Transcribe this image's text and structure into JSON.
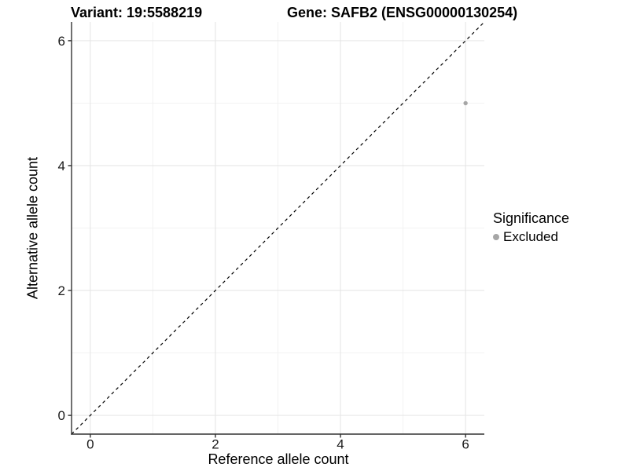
{
  "chart_data": {
    "type": "scatter",
    "title_left": "Variant: 19:5588219",
    "title_right": "Gene: SAFB2 (ENSG00000130254)",
    "xlabel": "Reference allele count",
    "ylabel": "Alternative allele count",
    "xlim": [
      -0.3,
      6.3
    ],
    "ylim": [
      -0.3,
      6.3
    ],
    "x_ticks": [
      0,
      2,
      4,
      6
    ],
    "y_ticks": [
      0,
      2,
      4,
      6
    ],
    "x_minor_ticks": [
      1,
      3,
      5
    ],
    "y_minor_ticks": [
      1,
      3,
      5
    ],
    "grid": true,
    "identity_line": {
      "style": "dashed",
      "color": "#000000"
    },
    "series": [
      {
        "name": "Excluded",
        "color": "#a6a6a6",
        "points": [
          {
            "x": 6,
            "y": 5
          }
        ]
      }
    ],
    "legend": {
      "title": "Significance",
      "position": "right",
      "items": [
        {
          "label": "Excluded",
          "color": "#a6a6a6"
        }
      ]
    },
    "colors": {
      "axis_line": "#333333",
      "grid_major": "#e6e6e6",
      "grid_minor": "#f2f2f2",
      "tick_text": "#1a1a1a"
    }
  }
}
